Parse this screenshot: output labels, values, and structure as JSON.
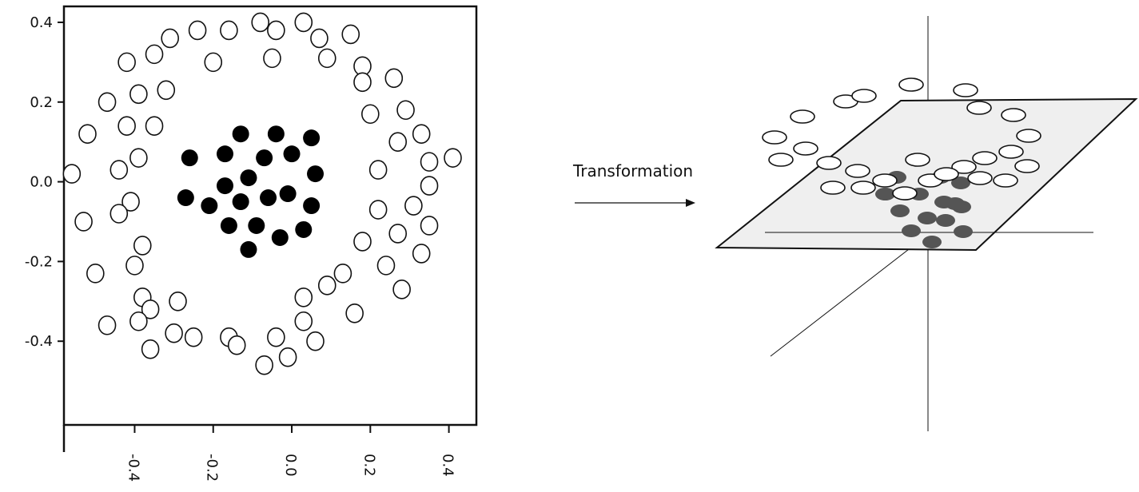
{
  "colors": {
    "stroke": "#111111",
    "inner_fill": "#000000",
    "outer_fill": "#ffffff",
    "plane_fill": "#efefef",
    "projected_inner_fill": "#555555"
  },
  "scatter_plot": {
    "x_ticks": [
      "-0.4",
      "-0.2",
      "0.0",
      "0.2",
      "0.4"
    ],
    "y_ticks": [
      "0.4",
      "0.2",
      "0.0",
      "-0.2",
      "-0.4"
    ]
  },
  "arrow": {
    "label": "Transformation"
  },
  "chart_data": {
    "type": "scatter",
    "xlim": [
      -0.58,
      0.47
    ],
    "ylim": [
      -0.61,
      0.44
    ],
    "series": [
      {
        "points": [
          [
            -0.26,
            0.06
          ],
          [
            -0.17,
            0.07
          ],
          [
            -0.13,
            0.12
          ],
          [
            -0.04,
            0.12
          ],
          [
            0.05,
            0.11
          ],
          [
            -0.07,
            0.06
          ],
          [
            0.0,
            0.07
          ],
          [
            0.06,
            0.02
          ],
          [
            -0.11,
            0.01
          ],
          [
            -0.17,
            -0.01
          ],
          [
            -0.27,
            -0.04
          ],
          [
            -0.21,
            -0.06
          ],
          [
            -0.13,
            -0.05
          ],
          [
            -0.06,
            -0.04
          ],
          [
            -0.01,
            -0.03
          ],
          [
            0.05,
            -0.06
          ],
          [
            -0.16,
            -0.11
          ],
          [
            -0.09,
            -0.11
          ],
          [
            -0.03,
            -0.14
          ],
          [
            0.03,
            -0.12
          ],
          [
            -0.11,
            -0.17
          ]
        ]
      },
      {
        "points": [
          [
            -0.24,
            0.38
          ],
          [
            -0.16,
            0.38
          ],
          [
            -0.08,
            0.4
          ],
          [
            -0.04,
            0.38
          ],
          [
            0.03,
            0.4
          ],
          [
            0.07,
            0.36
          ],
          [
            0.15,
            0.37
          ],
          [
            -0.31,
            0.36
          ],
          [
            -0.35,
            0.32
          ],
          [
            -0.42,
            0.3
          ],
          [
            -0.2,
            0.3
          ],
          [
            -0.05,
            0.31
          ],
          [
            0.09,
            0.31
          ],
          [
            0.18,
            0.29
          ],
          [
            0.18,
            0.25
          ],
          [
            0.26,
            0.26
          ],
          [
            -0.32,
            0.23
          ],
          [
            -0.39,
            0.22
          ],
          [
            -0.47,
            0.2
          ],
          [
            0.29,
            0.18
          ],
          [
            0.2,
            0.17
          ],
          [
            -0.42,
            0.14
          ],
          [
            -0.35,
            0.14
          ],
          [
            -0.52,
            0.12
          ],
          [
            0.33,
            0.12
          ],
          [
            0.27,
            0.1
          ],
          [
            -0.39,
            0.06
          ],
          [
            0.41,
            0.06
          ],
          [
            0.35,
            0.05
          ],
          [
            -0.44,
            0.03
          ],
          [
            0.22,
            0.03
          ],
          [
            -0.56,
            0.02
          ],
          [
            0.35,
            -0.01
          ],
          [
            -0.41,
            -0.05
          ],
          [
            0.31,
            -0.06
          ],
          [
            -0.44,
            -0.08
          ],
          [
            0.22,
            -0.07
          ],
          [
            -0.53,
            -0.1
          ],
          [
            0.35,
            -0.11
          ],
          [
            0.27,
            -0.13
          ],
          [
            -0.38,
            -0.16
          ],
          [
            0.18,
            -0.15
          ],
          [
            0.33,
            -0.18
          ],
          [
            -0.4,
            -0.21
          ],
          [
            0.24,
            -0.21
          ],
          [
            -0.5,
            -0.23
          ],
          [
            0.13,
            -0.23
          ],
          [
            0.09,
            -0.26
          ],
          [
            0.28,
            -0.27
          ],
          [
            -0.38,
            -0.29
          ],
          [
            0.03,
            -0.29
          ],
          [
            -0.29,
            -0.3
          ],
          [
            -0.36,
            -0.32
          ],
          [
            0.16,
            -0.33
          ],
          [
            -0.39,
            -0.35
          ],
          [
            0.03,
            -0.35
          ],
          [
            -0.47,
            -0.36
          ],
          [
            -0.3,
            -0.38
          ],
          [
            -0.25,
            -0.39
          ],
          [
            -0.16,
            -0.39
          ],
          [
            -0.14,
            -0.41
          ],
          [
            -0.04,
            -0.39
          ],
          [
            0.06,
            -0.4
          ],
          [
            -0.36,
            -0.42
          ],
          [
            -0.01,
            -0.44
          ],
          [
            -0.07,
            -0.46
          ]
        ]
      }
    ]
  }
}
